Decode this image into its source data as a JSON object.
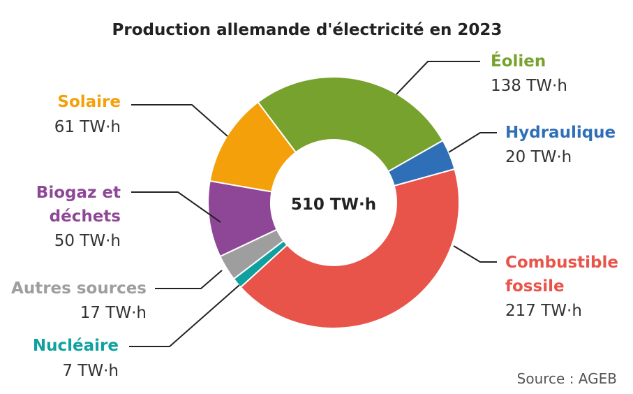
{
  "chart_data": {
    "type": "pie",
    "title": "Production allemande d'électricité en 2023",
    "center_label": "510 TW·h",
    "source": "Source : AGEB",
    "unit": "TW·h",
    "slices": [
      {
        "name": "Éolien",
        "value": 138,
        "value_label": "138 TW·h",
        "color": "#77a22d"
      },
      {
        "name": "Hydraulique",
        "value": 20,
        "value_label": "20 TW·h",
        "color": "#2e6fb7"
      },
      {
        "name": "Combustible fossile",
        "value": 217,
        "value_label": "217 TW·h",
        "color": "#e8534a"
      },
      {
        "name": "Nucléaire",
        "value": 7,
        "value_label": "7 TW·h",
        "color": "#10a0a0"
      },
      {
        "name": "Autres sources",
        "value": 17,
        "value_label": "17 TW·h",
        "color": "#9e9e9e"
      },
      {
        "name": "Biogaz et déchets",
        "value": 50,
        "value_label": "50 TW·h",
        "color": "#8e4796"
      },
      {
        "name": "Solaire",
        "value": 61,
        "value_label": "61 TW·h",
        "color": "#f4a00a"
      }
    ]
  }
}
